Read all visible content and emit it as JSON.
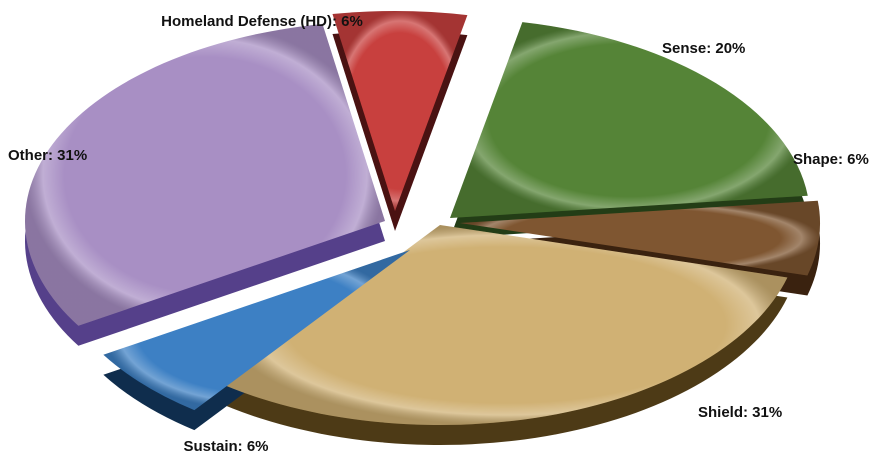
{
  "chart_data": {
    "type": "pie",
    "title": "",
    "style": "3d-exploded",
    "slices": [
      {
        "label": "Homeland Defense (HD): 6%",
        "name": "Homeland Defense (HD)",
        "value": 6,
        "color": "#c8403e",
        "side": "#4a1212"
      },
      {
        "label": "Sense: 20%",
        "name": "Sense",
        "value": 20,
        "color": "#558437",
        "side": "#233d16"
      },
      {
        "label": "Shape: 6%",
        "name": "Shape",
        "value": 6,
        "color": "#7f5631",
        "side": "#3a220f"
      },
      {
        "label": "Shield: 31%",
        "name": "Shield",
        "value": 31,
        "color": "#d0b174",
        "side": "#4d3a16"
      },
      {
        "label": "Sustain: 6%",
        "name": "Sustain",
        "value": 6,
        "color": "#3d80c4",
        "side": "#0f2d4d"
      },
      {
        "label": "Other: 31%",
        "name": "Other",
        "value": 31,
        "color": "#a88fc4",
        "side": "#55408a"
      }
    ]
  }
}
